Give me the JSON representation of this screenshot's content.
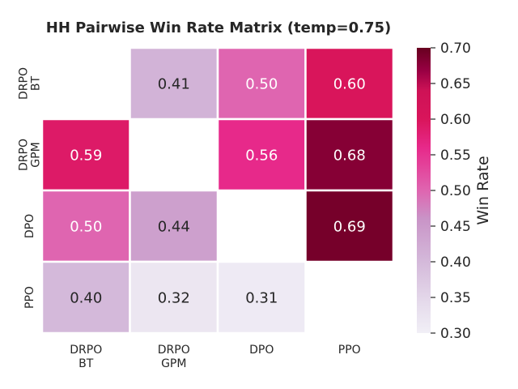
{
  "chart_data": {
    "type": "heatmap",
    "title": "HH Pairwise Win Rate Matrix (temp=0.75)",
    "rows": [
      [
        "DRPO",
        "BT"
      ],
      [
        "DRPO",
        "GPM"
      ],
      [
        "DPO"
      ],
      [
        "PPO"
      ]
    ],
    "columns": [
      [
        "DRPO",
        "BT"
      ],
      [
        "DRPO",
        "GPM"
      ],
      [
        "DPO"
      ],
      [
        "PPO"
      ]
    ],
    "values": [
      [
        null,
        0.41,
        0.5,
        0.6
      ],
      [
        0.59,
        null,
        0.56,
        0.68
      ],
      [
        0.5,
        0.44,
        null,
        0.69
      ],
      [
        0.4,
        0.32,
        0.31,
        null
      ]
    ],
    "colorbar": {
      "label": "Win Rate",
      "vmin": 0.3,
      "vmax": 0.7,
      "ticks": [
        "0.30",
        "0.35",
        "0.40",
        "0.45",
        "0.50",
        "0.55",
        "0.60",
        "0.65",
        "0.70"
      ]
    },
    "colormap_stops": [
      [
        0.0,
        "#f1eff6"
      ],
      [
        0.1,
        "#e6dcec"
      ],
      [
        0.25,
        "#d4b9da"
      ],
      [
        0.4,
        "#c994c7"
      ],
      [
        0.5,
        "#df65b0"
      ],
      [
        0.65,
        "#e7298a"
      ],
      [
        0.75,
        "#d9155b"
      ],
      [
        0.85,
        "#ce1256"
      ],
      [
        0.92,
        "#980043"
      ],
      [
        1.0,
        "#67001f"
      ]
    ]
  }
}
